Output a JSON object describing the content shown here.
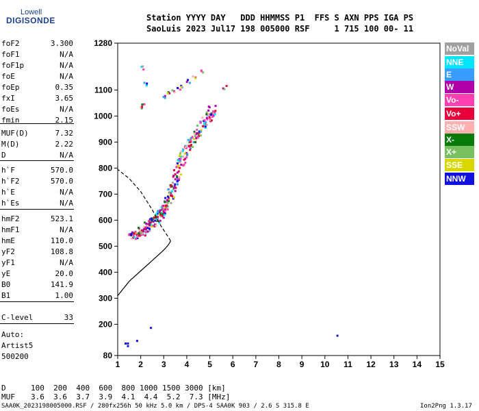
{
  "logo": {
    "top": "Lowell",
    "main": "DIGISONDE"
  },
  "header": {
    "row1": "Station YYYY DAY   DDD HHMMSS P1  FFS S AXN PPS IGA PS",
    "row2": "SaoLuis 2023 Jul17 198 005000 RSF     1 715 100 00- 11"
  },
  "params": [
    {
      "name": "foF2",
      "value": "3.300"
    },
    {
      "name": "foF1",
      "value": "N/A"
    },
    {
      "name": "foF1p",
      "value": "N/A"
    },
    {
      "name": "foE",
      "value": "N/A"
    },
    {
      "name": "foEp",
      "value": "0.35"
    },
    {
      "name": "fxI",
      "value": "3.65"
    },
    {
      "name": "foEs",
      "value": "N/A"
    },
    {
      "name": "fmin",
      "value": "2.15"
    },
    {
      "name": "MUF(D)",
      "value": "7.32"
    },
    {
      "name": "M(D)",
      "value": "2.22"
    },
    {
      "name": "D",
      "value": "N/A"
    },
    {
      "name": "h`F",
      "value": "570.0"
    },
    {
      "name": "h`F2",
      "value": "570.0"
    },
    {
      "name": "h`E",
      "value": "N/A"
    },
    {
      "name": "h`Es",
      "value": "N/A"
    },
    {
      "name": "hmF2",
      "value": "523.1"
    },
    {
      "name": "hmF1",
      "value": "N/A"
    },
    {
      "name": "hmE",
      "value": "110.0"
    },
    {
      "name": "yF2",
      "value": "108.8"
    },
    {
      "name": "yF1",
      "value": "N/A"
    },
    {
      "name": "yE",
      "value": "20.0"
    },
    {
      "name": "B0",
      "value": "141.9"
    },
    {
      "name": "B1",
      "value": "1.00"
    },
    {
      "name": "C-level",
      "value": "33"
    }
  ],
  "auto": {
    "line1": "Auto:",
    "line2": "Artist5",
    "line3": "500200"
  },
  "legend": [
    {
      "label": "NoVal",
      "color": "#a0a0a0"
    },
    {
      "label": "NNE",
      "color": "#00e5ff"
    },
    {
      "label": "E",
      "color": "#3b9cff"
    },
    {
      "label": "W",
      "color": "#b000a8"
    },
    {
      "label": "Vo-",
      "color": "#ff40b0"
    },
    {
      "label": "Vo+",
      "color": "#e8003a"
    },
    {
      "label": "SSW",
      "color": "#ffb0b0"
    },
    {
      "label": "X-",
      "color": "#0a7a0a"
    },
    {
      "label": "X+",
      "color": "#78c060"
    },
    {
      "label": "SSE",
      "color": "#d8d800"
    },
    {
      "label": "NNW",
      "color": "#1010e0"
    }
  ],
  "chart_data": {
    "type": "scatter",
    "xlim": [
      1,
      15
    ],
    "ylim": [
      80,
      1280
    ],
    "x_ticks": [
      1,
      2,
      3,
      4,
      5,
      6,
      7,
      8,
      9,
      10,
      11,
      12,
      13,
      14,
      15
    ],
    "y_ticks": [
      80,
      200,
      300,
      400,
      500,
      600,
      700,
      800,
      900,
      1000,
      1100,
      1280
    ],
    "grid": false,
    "echo_band": [
      {
        "f": 1.5,
        "h": 540
      },
      {
        "f": 1.8,
        "h": 548
      },
      {
        "f": 2.0,
        "h": 560
      },
      {
        "f": 2.2,
        "h": 575
      },
      {
        "f": 2.4,
        "h": 590
      },
      {
        "f": 2.6,
        "h": 605
      },
      {
        "f": 2.8,
        "h": 625
      },
      {
        "f": 3.0,
        "h": 650
      },
      {
        "f": 3.2,
        "h": 690
      },
      {
        "f": 3.4,
        "h": 740
      },
      {
        "f": 3.6,
        "h": 790
      },
      {
        "f": 3.8,
        "h": 840
      },
      {
        "f": 4.0,
        "h": 880
      },
      {
        "f": 4.3,
        "h": 920
      },
      {
        "f": 4.6,
        "h": 960
      },
      {
        "f": 4.9,
        "h": 1000
      },
      {
        "f": 5.1,
        "h": 1030
      }
    ],
    "upper_echoes": [
      {
        "f": 2.0,
        "h": 1040
      },
      {
        "f": 2.1,
        "h": 1048
      },
      {
        "f": 2.0,
        "h": 1190
      },
      {
        "f": 2.2,
        "h": 1125
      },
      {
        "f": 3.0,
        "h": 1080
      },
      {
        "f": 3.2,
        "h": 1095
      },
      {
        "f": 3.4,
        "h": 1100
      },
      {
        "f": 3.6,
        "h": 1110
      },
      {
        "f": 3.8,
        "h": 1120
      },
      {
        "f": 4.0,
        "h": 1135
      },
      {
        "f": 4.3,
        "h": 1150
      },
      {
        "f": 4.6,
        "h": 1175
      },
      {
        "f": 5.6,
        "h": 1115
      }
    ],
    "low_echoes": [
      {
        "f": 1.3,
        "h": 130
      },
      {
        "f": 1.4,
        "h": 130
      },
      {
        "f": 1.4,
        "h": 120
      },
      {
        "f": 1.8,
        "h": 140
      },
      {
        "f": 2.4,
        "h": 190
      },
      {
        "f": 10.5,
        "h": 160
      }
    ],
    "profile_solid": [
      [
        1.0,
        310
      ],
      [
        1.5,
        365
      ],
      [
        2.0,
        405
      ],
      [
        2.5,
        445
      ],
      [
        3.0,
        485
      ],
      [
        3.2,
        505
      ],
      [
        3.3,
        520
      ]
    ],
    "profile_dashed": [
      [
        3.3,
        520
      ],
      [
        3.2,
        535
      ],
      [
        2.9,
        575
      ],
      [
        2.5,
        640
      ],
      [
        2.0,
        710
      ],
      [
        1.5,
        760
      ],
      [
        1.0,
        795
      ]
    ]
  },
  "footer": {
    "row_d_label": "D",
    "row_d_values": "100  200  400  600  800 1000 1500 3000 [km]",
    "row_muf_label": "MUF",
    "row_muf_values": "3.6  3.6  3.7  3.9  4.1  4.4  5.2  7.3 [MHz]",
    "file_line": "SAA0K_2023198005000.RSF / 280fx256h 50 kHz 5.0 km / DPS-4 SAA0K 903 / 2.6 S 315.8 E",
    "version": "Ion2Png 1.3.17"
  }
}
